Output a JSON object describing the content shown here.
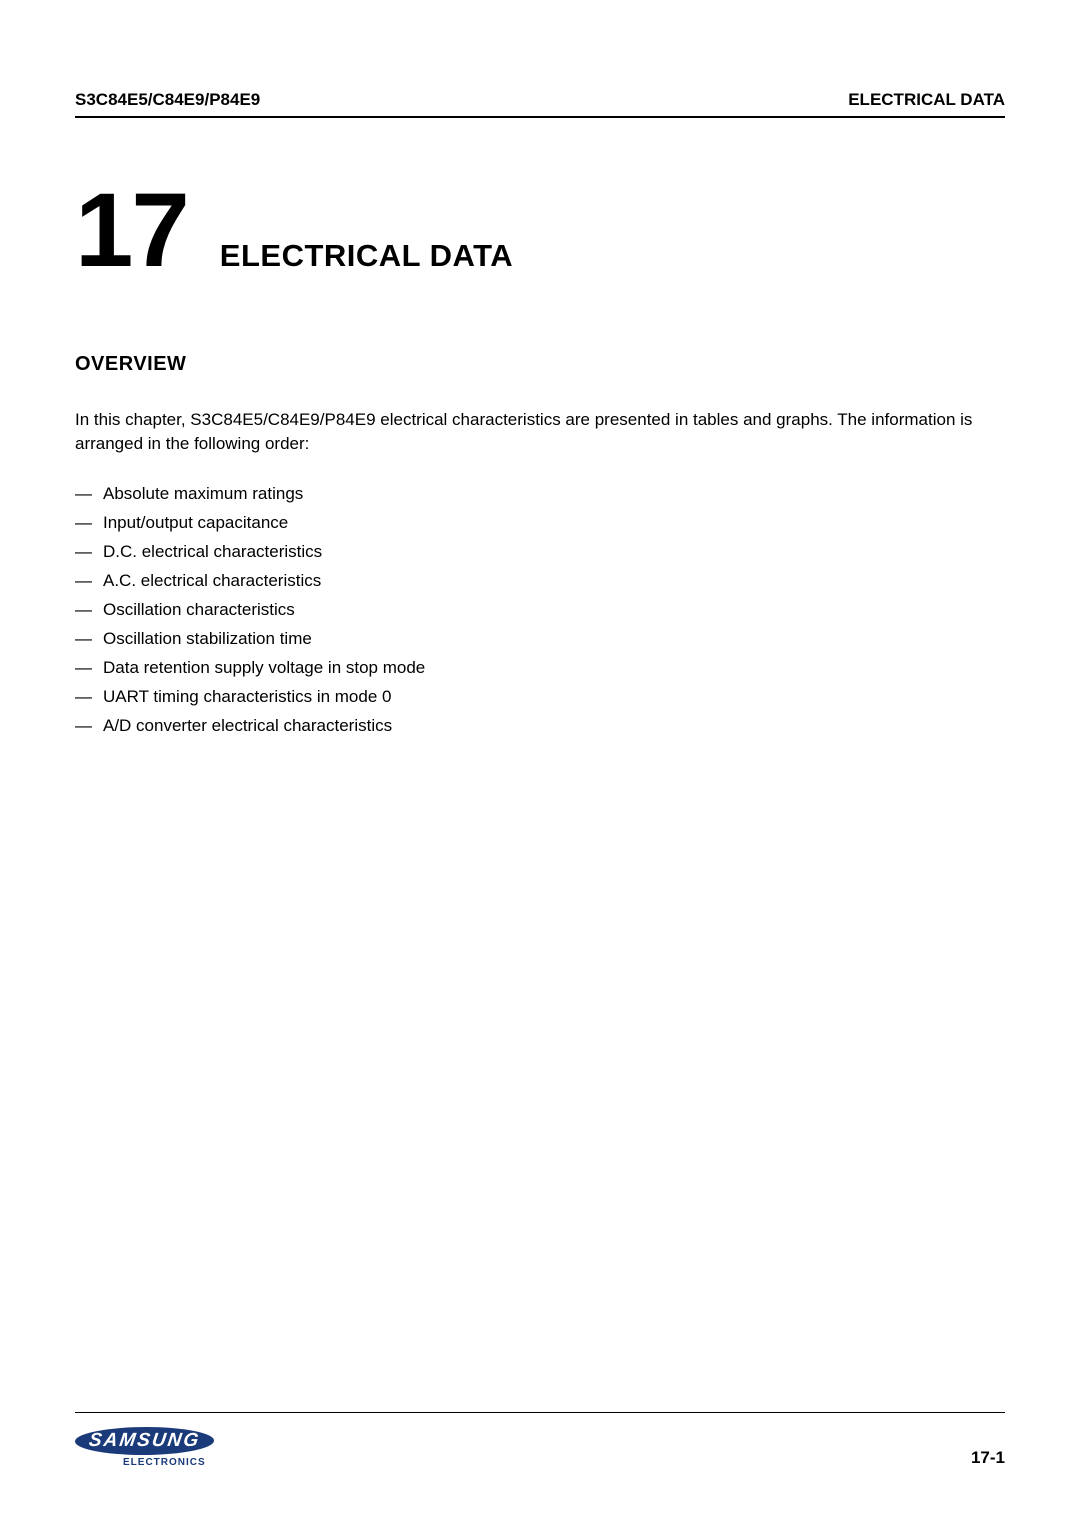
{
  "header": {
    "left": "S3C84E5/C84E9/P84E9",
    "right": "ELECTRICAL DATA"
  },
  "chapter": {
    "number": "17",
    "title": "ELECTRICAL DATA"
  },
  "overview": {
    "section_title": "OVERVIEW",
    "intro_text": "In this chapter, S3C84E5/C84E9/P84E9 electrical characteristics are presented in tables and graphs. The information is arranged in the following order:",
    "bullets": [
      "Absolute maximum ratings",
      "Input/output capacitance",
      "D.C. electrical characteristics",
      "A.C. electrical characteristics",
      "Oscillation characteristics",
      "Oscillation stabilization time",
      "Data retention supply voltage in stop mode",
      "UART timing characteristics in mode 0",
      "A/D converter electrical characteristics"
    ]
  },
  "footer": {
    "logo_main": "SAMSUNG",
    "logo_sub": "ELECTRONICS",
    "page_number": "17-1",
    "logo_color": "#1a3a7a"
  },
  "colors": {
    "text": "#000000",
    "background": "#ffffff",
    "logo": "#1a3a7a"
  }
}
